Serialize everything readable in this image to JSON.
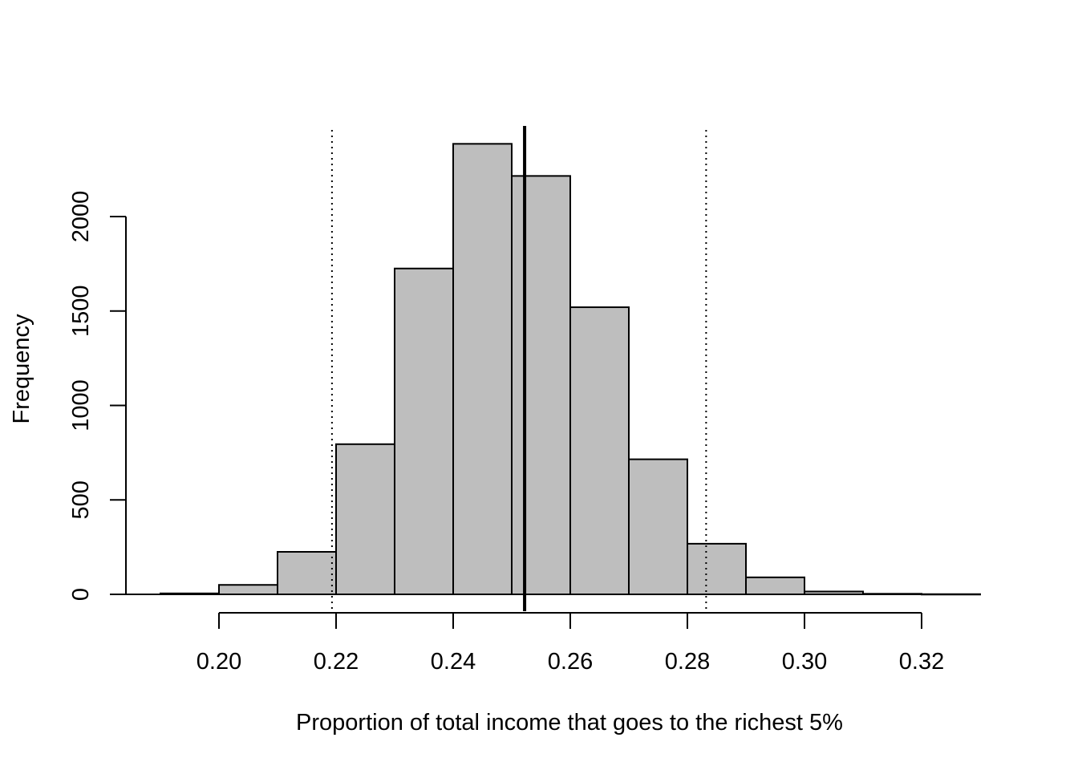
{
  "chart_data": {
    "type": "bar",
    "title": "",
    "xlabel": "Proportion of total income that goes to the richest 5%",
    "ylabel": "Frequency",
    "bin_edges": [
      0.19,
      0.2,
      0.21,
      0.22,
      0.23,
      0.24,
      0.25,
      0.26,
      0.27,
      0.28,
      0.29,
      0.3,
      0.31,
      0.32,
      0.33
    ],
    "values": [
      5,
      50,
      225,
      795,
      1725,
      2385,
      2215,
      1520,
      715,
      268,
      90,
      15,
      3,
      1
    ],
    "xlim": [
      0.19,
      0.33
    ],
    "ylim": [
      0,
      2500
    ],
    "x_ticks": [
      0.2,
      0.22,
      0.24,
      0.26,
      0.28,
      0.3,
      0.32
    ],
    "x_tick_labels": [
      "0.20",
      "0.22",
      "0.24",
      "0.26",
      "0.28",
      "0.30",
      "0.32"
    ],
    "y_ticks": [
      0,
      500,
      1000,
      1500,
      2000
    ],
    "y_tick_labels": [
      "0",
      "500",
      "1000",
      "1500",
      "2000"
    ],
    "mean_line": 0.2522,
    "interval_lines": [
      0.2193,
      0.2832
    ],
    "grid": false,
    "legend": "none",
    "colors": {
      "bar_fill": "#bebebe",
      "stroke": "#000000"
    }
  }
}
